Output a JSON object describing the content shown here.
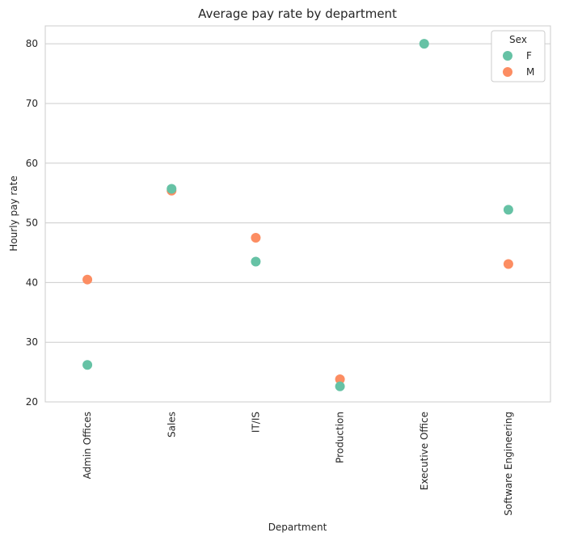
{
  "chart_data": {
    "type": "scatter",
    "title": "Average pay rate by department",
    "xlabel": "Department",
    "ylabel": "Hourly pay rate",
    "categories": [
      "Admin Offices",
      "Sales",
      "IT/IS",
      "Production",
      "Executive Office",
      "Software Engineering"
    ],
    "ylim": [
      20,
      83
    ],
    "yticks": [
      20,
      30,
      40,
      50,
      60,
      70,
      80
    ],
    "grid": "horizontal",
    "legend": {
      "title": "Sex",
      "placement": "top-right"
    },
    "series": [
      {
        "name": "F",
        "color": "#66c2a5",
        "values": [
          26.2,
          55.7,
          43.5,
          22.6,
          80.0,
          52.2
        ]
      },
      {
        "name": "M",
        "color": "#fc8d62",
        "values": [
          40.5,
          55.4,
          47.5,
          23.8,
          null,
          43.1
        ]
      }
    ]
  }
}
